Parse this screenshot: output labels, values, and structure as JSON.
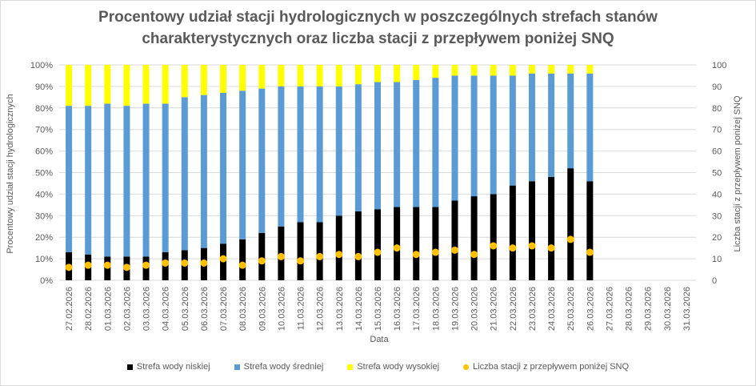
{
  "chart_data": {
    "type": "bar",
    "stacked": true,
    "title_lines": [
      "Procentowy udział stacji hydrologicznych w poszczególnych strefach stanów",
      "charakterystycznych oraz liczba stacji z przepływem poniżej SNQ"
    ],
    "xlabel": "Data",
    "ylabel_left": "Procentowy udział stacji hydrologicznych",
    "ylabel_right": "Liczba stacji z przepływem poniżej SNQ",
    "ylim_left": [
      0,
      100
    ],
    "ylim_right": [
      0,
      100
    ],
    "yticks_left": [
      "0%",
      "10%",
      "20%",
      "30%",
      "40%",
      "50%",
      "60%",
      "70%",
      "80%",
      "90%",
      "100%"
    ],
    "yticks_right": [
      "0",
      "10",
      "20",
      "30",
      "40",
      "50",
      "60",
      "70",
      "80",
      "90",
      "100"
    ],
    "categories": [
      "27.02.2026",
      "28.02.2026",
      "01.03.2026",
      "02.03.2026",
      "03.03.2026",
      "04.03.2026",
      "05.03.2026",
      "06.03.2026",
      "07.03.2026",
      "08.03.2026",
      "09.03.2026",
      "10.03.2026",
      "11.03.2026",
      "12.03.2026",
      "13.03.2026",
      "14.03.2026",
      "15.03.2026",
      "16.03.2026",
      "17.03.2026",
      "18.03.2026",
      "19.03.2026",
      "20.03.2026",
      "21.03.2026",
      "22.03.2026",
      "23.03.2026",
      "24.03.2026",
      "25.03.2026",
      "26.03.2026",
      "27.03.2026",
      "28.03.2026",
      "29.03.2026",
      "30.03.2026",
      "31.03.2026"
    ],
    "series": [
      {
        "name": "Strefa wody niskiej",
        "color": "#000000",
        "values": [
          13,
          12,
          11,
          11,
          11,
          13,
          14,
          15,
          17,
          19,
          22,
          25,
          27,
          27,
          30,
          32,
          33,
          34,
          34,
          34,
          37,
          39,
          40,
          44,
          46,
          48,
          52,
          46,
          null,
          null,
          null,
          null,
          null
        ]
      },
      {
        "name": "Strefa wody średniej",
        "color": "#5b9bd5",
        "values": [
          68,
          69,
          71,
          70,
          71,
          69,
          71,
          71,
          70,
          69,
          67,
          65,
          63,
          63,
          60,
          59,
          59,
          58,
          59,
          60,
          58,
          56,
          55,
          51,
          50,
          48,
          44,
          50,
          null,
          null,
          null,
          null,
          null
        ]
      },
      {
        "name": "Strefa wody wysokiej",
        "color": "#ffff00",
        "values": [
          19,
          19,
          18,
          19,
          18,
          18,
          15,
          14,
          13,
          12,
          11,
          10,
          10,
          10,
          10,
          9,
          8,
          8,
          7,
          6,
          5,
          5,
          5,
          5,
          4,
          4,
          4,
          4,
          null,
          null,
          null,
          null,
          null
        ]
      },
      {
        "name": "Liczba stacji z przepływem poniżej SNQ",
        "color": "#ffc000",
        "axis": "right",
        "marker": "circle",
        "values": [
          6,
          7,
          7,
          6,
          7,
          8,
          8,
          8,
          10,
          7,
          9,
          11,
          9,
          11,
          12,
          11,
          13,
          15,
          12,
          13,
          14,
          12,
          16,
          15,
          16,
          15,
          19,
          13,
          null,
          null,
          null,
          null,
          null
        ]
      }
    ]
  }
}
